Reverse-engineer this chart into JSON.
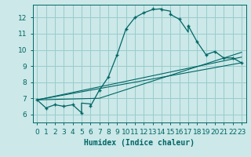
{
  "xlabel": "Humidex (Indice chaleur)",
  "bg_color": "#cce8e8",
  "grid_color": "#99cccc",
  "line_color": "#006666",
  "xlim": [
    -0.5,
    23.5
  ],
  "ylim": [
    5.5,
    12.8
  ],
  "xticks": [
    0,
    1,
    2,
    3,
    4,
    5,
    6,
    7,
    8,
    9,
    10,
    11,
    12,
    13,
    14,
    15,
    16,
    17,
    18,
    19,
    20,
    21,
    22,
    23
  ],
  "yticks": [
    6,
    7,
    8,
    9,
    10,
    11,
    12
  ],
  "curve1_x": [
    0,
    1,
    2,
    3,
    3,
    4,
    5,
    5,
    6,
    6,
    7,
    8,
    9,
    10,
    11,
    12,
    13,
    14,
    14,
    15,
    15,
    16,
    17,
    17,
    18,
    19,
    20,
    21,
    22,
    23
  ],
  "curve1_y": [
    6.9,
    6.4,
    6.6,
    6.5,
    6.5,
    6.6,
    6.1,
    6.7,
    6.65,
    6.5,
    7.5,
    8.3,
    9.7,
    11.3,
    12.0,
    12.3,
    12.5,
    12.55,
    12.5,
    12.4,
    12.2,
    11.9,
    11.1,
    11.5,
    10.5,
    9.7,
    9.9,
    9.5,
    9.5,
    9.2
  ],
  "line2_x": [
    0,
    23
  ],
  "line2_y": [
    6.9,
    9.2
  ],
  "line3_x": [
    0,
    7,
    23
  ],
  "line3_y": [
    6.9,
    7.0,
    9.85
  ],
  "line4_x": [
    0,
    23
  ],
  "line4_y": [
    6.9,
    9.55
  ],
  "markers_x": [
    0,
    1,
    2,
    3,
    4,
    5,
    6,
    7,
    8,
    9,
    10,
    11,
    12,
    13,
    14,
    15,
    16,
    17,
    18,
    19,
    20,
    21,
    22,
    23
  ],
  "markers_y": [
    6.9,
    6.4,
    6.6,
    6.5,
    6.6,
    6.1,
    6.5,
    7.5,
    8.3,
    9.7,
    11.3,
    12.0,
    12.3,
    12.55,
    12.5,
    12.2,
    11.9,
    11.5,
    10.5,
    9.7,
    9.9,
    9.5,
    9.5,
    9.2
  ],
  "tick_fontsize": 6.5,
  "xlabel_fontsize": 7
}
